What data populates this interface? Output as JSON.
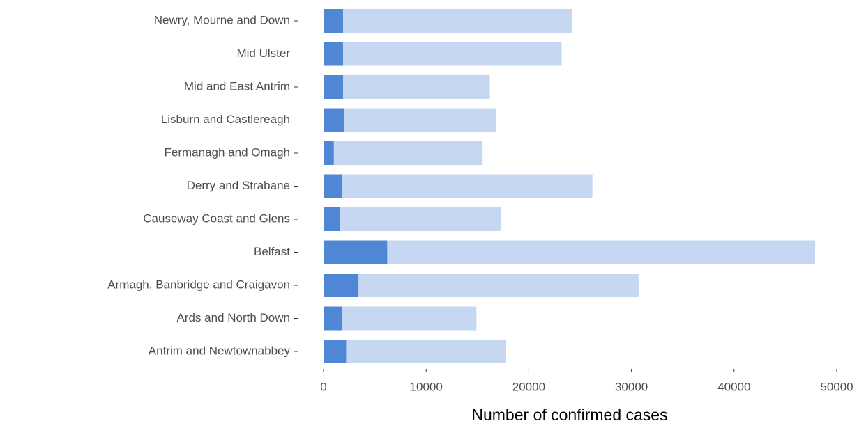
{
  "chart_data": {
    "type": "bar",
    "orientation": "horizontal",
    "overlap": true,
    "x_label": "Number of confirmed cases",
    "categories": [
      "Newry, Mourne and Down",
      "Mid Ulster",
      "Mid and East Antrim",
      "Lisburn and Castlereagh",
      "Fermanagh and Omagh",
      "Derry and Strabane",
      "Causeway Coast and Glens",
      "Belfast",
      "Armagh, Banbridge and Craigavon",
      "Ards and North Down",
      "Antrim and Newtownabbey"
    ],
    "series": [
      {
        "color": "#c6d8f1",
        "values": [
          24200,
          23200,
          16200,
          16800,
          15500,
          26200,
          17300,
          47900,
          30700,
          14900,
          17800
        ]
      },
      {
        "color": "#4f87d6",
        "values": [
          1900,
          1900,
          1900,
          2000,
          1000,
          1800,
          1600,
          6200,
          3400,
          1800,
          2200
        ]
      }
    ],
    "xlim": [
      0,
      50000
    ],
    "xticks": [
      0,
      10000,
      20000,
      30000,
      40000,
      50000
    ],
    "grid": false
  }
}
